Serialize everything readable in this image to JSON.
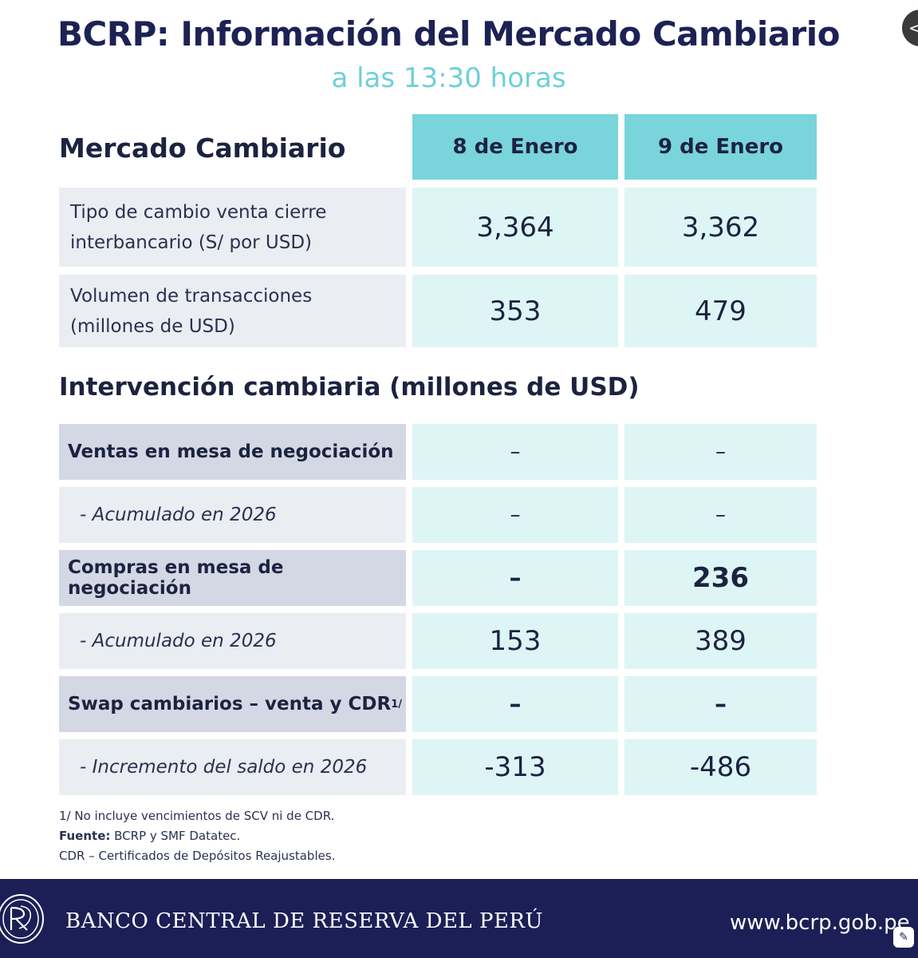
{
  "header": {
    "title": "BCRP: Información del Mercado Cambiario",
    "subtitle": "a las 13:30 horas"
  },
  "market": {
    "heading": "Mercado Cambiario",
    "columns": [
      "8 de Enero",
      "9 de Enero"
    ],
    "rows": [
      {
        "label_line1": "Tipo de cambio venta cierre",
        "label_line2": "interbancario (S/ por USD)",
        "values": [
          "3,364",
          "3,362"
        ]
      },
      {
        "label_line1": "Volumen de transacciones",
        "label_line2": "(millones de USD)",
        "values": [
          "353",
          "479"
        ]
      }
    ]
  },
  "intervention": {
    "heading": "Intervención cambiaria (millones de USD)",
    "rows": [
      {
        "label": "Ventas en mesa de negociación",
        "values": [
          "–",
          "–"
        ]
      },
      {
        "label": "-  Acumulado en 2026",
        "values": [
          "–",
          "–"
        ]
      },
      {
        "label": "Compras en mesa de negociación",
        "values": [
          "–",
          "236"
        ]
      },
      {
        "label": "-  Acumulado en 2026",
        "values": [
          "153",
          "389"
        ]
      },
      {
        "label": "Swap cambiarios – venta y CDR",
        "sup": "1/",
        "values": [
          "–",
          "–"
        ]
      },
      {
        "label": "-  Incremento del saldo en 2026",
        "values": [
          "-313",
          "-486"
        ]
      }
    ]
  },
  "notes": {
    "note1": "1/ No incluye vencimientos de SCV ni de CDR.",
    "source_label": "Fuente:",
    "source_text": " BCRP y SMF Datatec.",
    "note3": "CDR – Certificados de Depósitos Reajustables."
  },
  "footer": {
    "bank_name": "BANCO CENTRAL DE RESERVA DEL PERÚ",
    "url": "www.bcrp.gob.pe"
  },
  "icons": {
    "corner": "chevron-left-icon",
    "logo": "bcrp-logo",
    "footer_small": "edit-icon"
  },
  "colors": {
    "navy": "#1c2254",
    "teal_header": "#79d4db",
    "teal_light": "#def5f6",
    "subtitle": "#6fd0d8",
    "footer_bg": "#1c1f55"
  }
}
